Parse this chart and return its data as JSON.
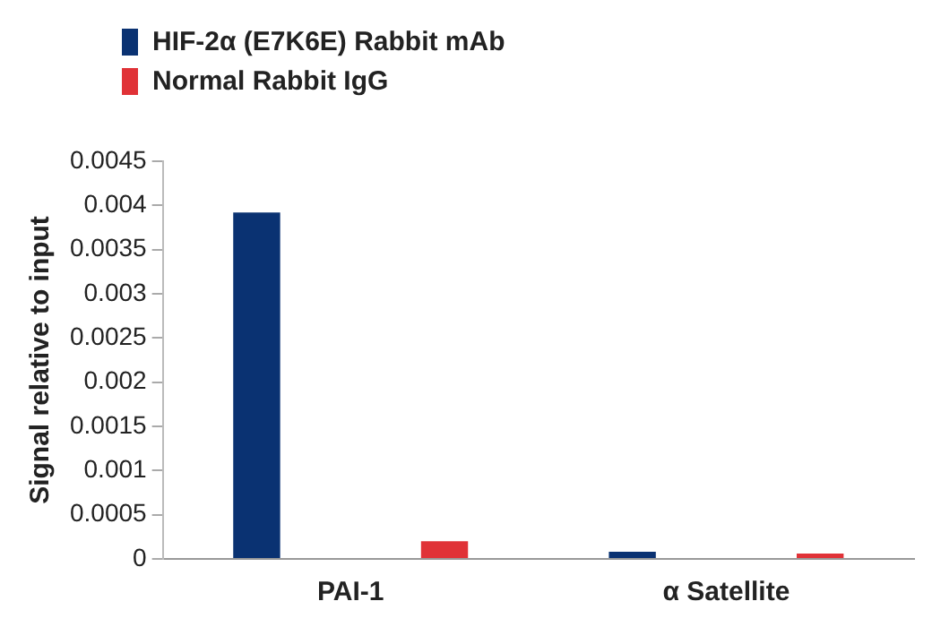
{
  "chart_data": {
    "type": "bar",
    "ylabel": "Signal relative to input",
    "categories": [
      "PAI-1",
      "α Satellite"
    ],
    "series": [
      {
        "name": "HIF-2α (E7K6E) Rabbit mAb",
        "color": "#0a3272",
        "values": [
          0.00392,
          8e-05
        ]
      },
      {
        "name": "Normal Rabbit IgG",
        "color": "#e03237",
        "values": [
          0.0002,
          6e-05
        ]
      }
    ],
    "ylim": [
      0,
      0.0045
    ],
    "yticks": [
      0,
      0.0005,
      0.001,
      0.0015,
      0.002,
      0.0025,
      0.003,
      0.0035,
      0.004,
      0.0045
    ],
    "grid": false,
    "legend": "top left"
  }
}
